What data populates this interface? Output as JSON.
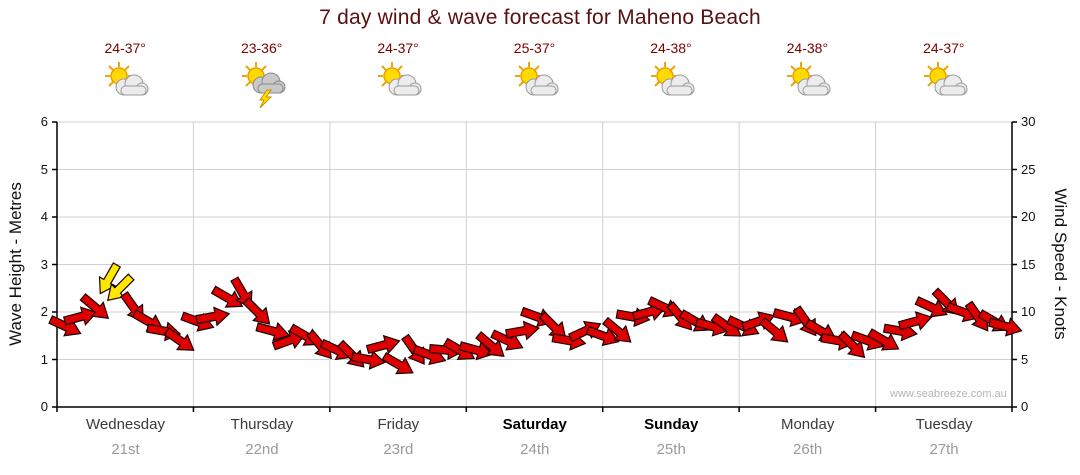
{
  "title": "7 day wind & wave forecast for Maheno Beach",
  "watermark": "www.seabreeze.com.au",
  "colors": {
    "arrow_red": "#dd0000",
    "arrow_yellow": "#ffe800",
    "arrow_outline": "#1a0000",
    "grid": "#d0d0d0",
    "axis": "#000000",
    "title_text": "#5a1010",
    "temp_text": "#7c0000",
    "date_text": "#9a9a9a"
  },
  "days": [
    {
      "name": "Wednesday",
      "date": "21st",
      "temp": "24-37°",
      "icon": "sun-cloud",
      "bold": false
    },
    {
      "name": "Thursday",
      "date": "22nd",
      "temp": "23-36°",
      "icon": "storm",
      "bold": false
    },
    {
      "name": "Friday",
      "date": "23rd",
      "temp": "24-37°",
      "icon": "sun-cloud",
      "bold": false
    },
    {
      "name": "Saturday",
      "date": "24th",
      "temp": "25-37°",
      "icon": "sun-cloud",
      "bold": true
    },
    {
      "name": "Sunday",
      "date": "25th",
      "temp": "24-38°",
      "icon": "sun-cloud",
      "bold": true
    },
    {
      "name": "Monday",
      "date": "26th",
      "temp": "24-38°",
      "icon": "sun-cloud",
      "bold": false
    },
    {
      "name": "Tuesday",
      "date": "27th",
      "temp": "24-37°",
      "icon": "sun-cloud",
      "bold": false
    }
  ],
  "chart_data": {
    "type": "scatter",
    "style": "wind-direction-arrows",
    "title": "7 day wind & wave forecast for Maheno Beach",
    "left_axis": {
      "title": "Wave Height - Metres",
      "ticks": [
        0,
        1,
        2,
        3,
        4,
        5,
        6
      ],
      "range": [
        0,
        6
      ]
    },
    "right_axis": {
      "title": "Wind Speed - Knots",
      "ticks": [
        0,
        5,
        10,
        15,
        20,
        25,
        30
      ],
      "range": [
        0,
        30
      ]
    },
    "x_categories": [
      "Wednesday 21st",
      "Thursday 22nd",
      "Friday 23rd",
      "Saturday 24th",
      "Sunday 25th",
      "Monday 26th",
      "Tuesday 27th"
    ],
    "x_day_span": [
      0,
      7
    ],
    "grid": true,
    "point_format": [
      "t_days",
      "knots",
      "angle_deg",
      "color"
    ],
    "series": [
      {
        "name": "Wind Speed (knots)",
        "unit": "knots",
        "points": [
          [
            0.06,
            8.5,
            25,
            "red"
          ],
          [
            0.17,
            9.5,
            -15,
            "red"
          ],
          [
            0.28,
            10.5,
            40,
            "red"
          ],
          [
            0.38,
            13.5,
            120,
            "yellow"
          ],
          [
            0.46,
            12.5,
            135,
            "yellow"
          ],
          [
            0.56,
            10.5,
            55,
            "red"
          ],
          [
            0.67,
            9,
            30,
            "red"
          ],
          [
            0.78,
            8,
            10,
            "red"
          ],
          [
            0.9,
            7,
            35,
            "red"
          ],
          [
            1.03,
            9,
            20,
            "red"
          ],
          [
            1.14,
            9.5,
            -10,
            "red"
          ],
          [
            1.25,
            11.5,
            30,
            "red"
          ],
          [
            1.36,
            12,
            60,
            "red"
          ],
          [
            1.47,
            10,
            45,
            "red"
          ],
          [
            1.58,
            8,
            15,
            "red"
          ],
          [
            1.7,
            7,
            -20,
            "red"
          ],
          [
            1.82,
            7.5,
            30,
            "red"
          ],
          [
            1.93,
            6.5,
            50,
            "red"
          ],
          [
            2.05,
            6,
            25,
            "red"
          ],
          [
            2.16,
            5.5,
            45,
            "red"
          ],
          [
            2.28,
            5,
            10,
            "red"
          ],
          [
            2.39,
            6.5,
            -15,
            "red"
          ],
          [
            2.5,
            4.5,
            30,
            "red"
          ],
          [
            2.62,
            6,
            55,
            "red"
          ],
          [
            2.73,
            5.5,
            20,
            "red"
          ],
          [
            2.85,
            6,
            5,
            "red"
          ],
          [
            2.95,
            6,
            30,
            "red"
          ],
          [
            3.07,
            6,
            15,
            "red"
          ],
          [
            3.18,
            6.5,
            40,
            "red"
          ],
          [
            3.3,
            7,
            25,
            "red"
          ],
          [
            3.41,
            8,
            -10,
            "red"
          ],
          [
            3.52,
            9.5,
            20,
            "red"
          ],
          [
            3.64,
            8.5,
            45,
            "red"
          ],
          [
            3.75,
            7,
            10,
            "red"
          ],
          [
            3.87,
            8,
            -25,
            "red"
          ],
          [
            4,
            7.5,
            20,
            "red"
          ],
          [
            4.11,
            8,
            40,
            "red"
          ],
          [
            4.22,
            9.5,
            10,
            "red"
          ],
          [
            4.34,
            10,
            -15,
            "red"
          ],
          [
            4.45,
            10.5,
            25,
            "red"
          ],
          [
            4.57,
            9.5,
            50,
            "red"
          ],
          [
            4.68,
            9,
            30,
            "red"
          ],
          [
            4.8,
            8.5,
            15,
            "red"
          ],
          [
            4.91,
            8.5,
            35,
            "red"
          ],
          [
            5.03,
            8.5,
            25,
            "red"
          ],
          [
            5.14,
            9,
            -20,
            "red"
          ],
          [
            5.26,
            8,
            40,
            "red"
          ],
          [
            5.37,
            9.5,
            15,
            "red"
          ],
          [
            5.49,
            9,
            55,
            "red"
          ],
          [
            5.6,
            8,
            30,
            "red"
          ],
          [
            5.72,
            7,
            10,
            "red"
          ],
          [
            5.83,
            6.5,
            45,
            "red"
          ],
          [
            5.94,
            7,
            20,
            "red"
          ],
          [
            6.06,
            7,
            30,
            "red"
          ],
          [
            6.18,
            8,
            10,
            "red"
          ],
          [
            6.29,
            9,
            -15,
            "red"
          ],
          [
            6.41,
            10.5,
            25,
            "red"
          ],
          [
            6.52,
            11,
            45,
            "red"
          ],
          [
            6.64,
            10,
            20,
            "red"
          ],
          [
            6.75,
            9.5,
            55,
            "red"
          ],
          [
            6.87,
            9,
            30,
            "red"
          ],
          [
            6.95,
            8.5,
            15,
            "red"
          ]
        ]
      }
    ]
  }
}
